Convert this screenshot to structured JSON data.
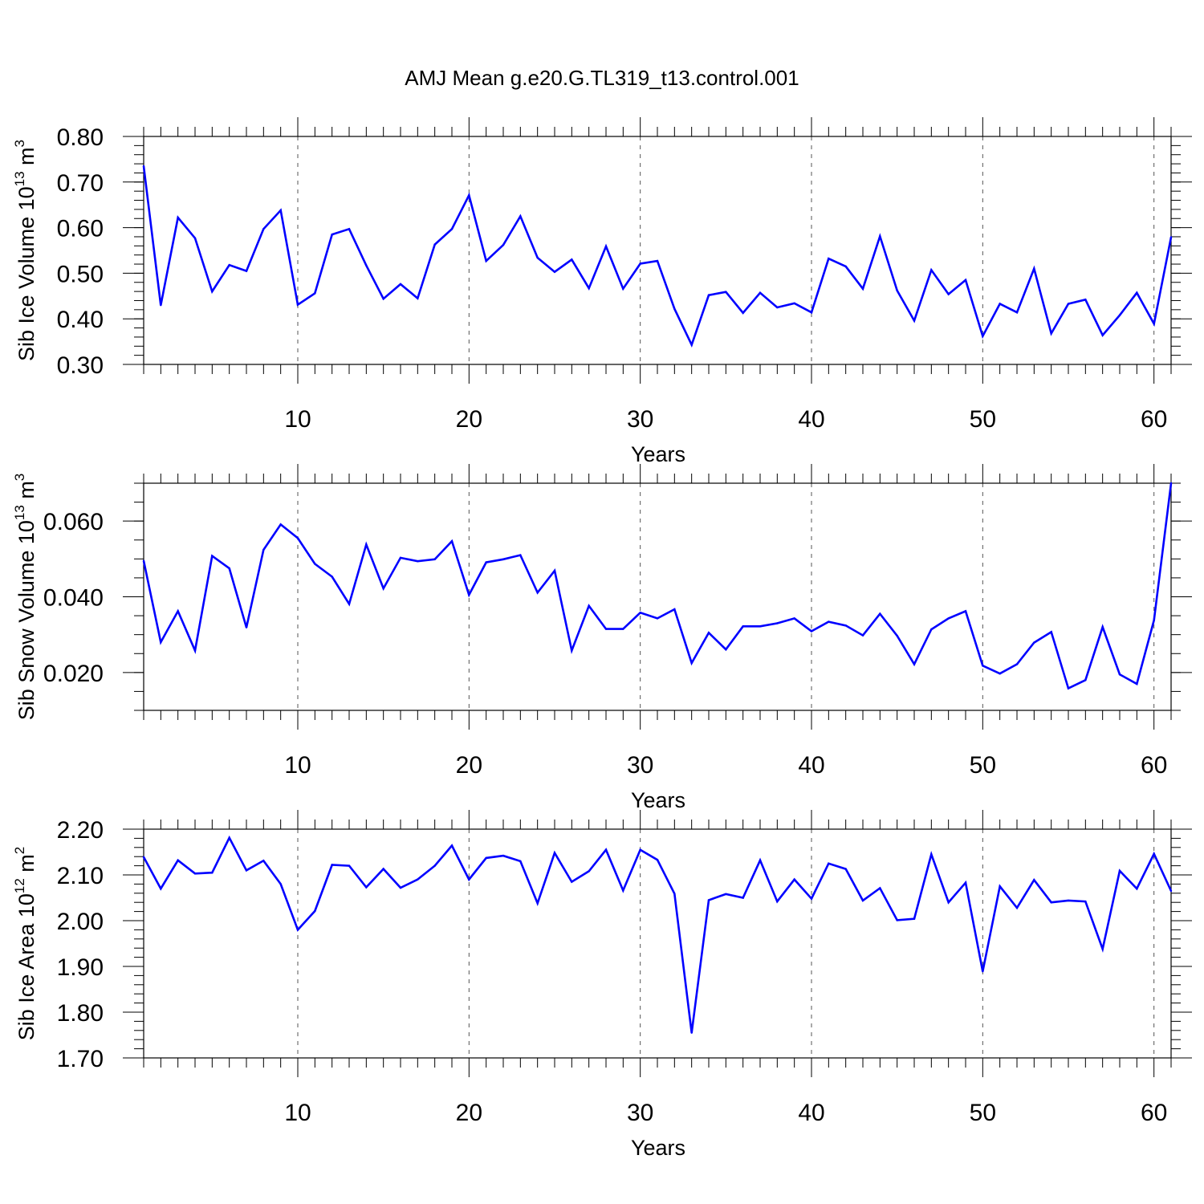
{
  "title": "AMJ Mean g.e20.G.TL319_t13.control.001",
  "chart_data": [
    {
      "type": "line",
      "xlabel": "Years",
      "ylabel": "Sib Ice Volume 10",
      "ylabel_exp": "13",
      "ylabel_unit": "m",
      "ylabel_unit_exp": "3",
      "xlim": [
        1,
        61
      ],
      "ylim": [
        0.3,
        0.8
      ],
      "xticks": [
        10,
        20,
        30,
        40,
        50,
        60
      ],
      "yticks": [
        0.3,
        0.4,
        0.5,
        0.6,
        0.7,
        0.8
      ],
      "ytick_labels": [
        "0.30",
        "0.40",
        "0.50",
        "0.60",
        "0.70",
        "0.80"
      ],
      "yminor": 0.02,
      "color": "#0000ff",
      "x": [
        1,
        2,
        3,
        4,
        5,
        6,
        7,
        8,
        9,
        10,
        11,
        12,
        13,
        14,
        15,
        16,
        17,
        18,
        19,
        20,
        21,
        22,
        23,
        24,
        25,
        26,
        27,
        28,
        29,
        30,
        31,
        32,
        33,
        34,
        35,
        36,
        37,
        38,
        39,
        40,
        41,
        42,
        43,
        44,
        45,
        46,
        47,
        48,
        49,
        50,
        51,
        52,
        53,
        54,
        55,
        56,
        57,
        58,
        59,
        60,
        61
      ],
      "y": [
        0.735,
        0.43,
        0.622,
        0.577,
        0.46,
        0.518,
        0.505,
        0.597,
        0.638,
        0.431,
        0.456,
        0.585,
        0.597,
        0.517,
        0.444,
        0.476,
        0.445,
        0.563,
        0.597,
        0.671,
        0.527,
        0.562,
        0.625,
        0.534,
        0.503,
        0.53,
        0.467,
        0.559,
        0.466,
        0.521,
        0.527,
        0.422,
        0.343,
        0.452,
        0.459,
        0.413,
        0.457,
        0.425,
        0.434,
        0.414,
        0.532,
        0.515,
        0.466,
        0.581,
        0.462,
        0.396,
        0.507,
        0.454,
        0.485,
        0.362,
        0.433,
        0.414,
        0.51,
        0.368,
        0.433,
        0.442,
        0.364,
        0.408,
        0.457,
        0.389,
        0.579
      ]
    },
    {
      "type": "line",
      "xlabel": "Years",
      "ylabel": "Sib Snow Volume 10",
      "ylabel_exp": "13",
      "ylabel_unit": "m",
      "ylabel_unit_exp": "3",
      "xlim": [
        1,
        61
      ],
      "ylim": [
        0.01,
        0.07
      ],
      "xticks": [
        10,
        20,
        30,
        40,
        50,
        60
      ],
      "yticks": [
        0.02,
        0.04,
        0.06
      ],
      "ytick_labels": [
        "0.020",
        "0.040",
        "0.060"
      ],
      "yminor": 0.005,
      "color": "#0000ff",
      "x": [
        1,
        2,
        3,
        4,
        5,
        6,
        7,
        8,
        9,
        10,
        11,
        12,
        13,
        14,
        15,
        16,
        17,
        18,
        19,
        20,
        21,
        22,
        23,
        24,
        25,
        26,
        27,
        28,
        29,
        30,
        31,
        32,
        33,
        34,
        35,
        36,
        37,
        38,
        39,
        40,
        41,
        42,
        43,
        44,
        45,
        46,
        47,
        48,
        49,
        50,
        51,
        52,
        53,
        54,
        55,
        56,
        57,
        58,
        59,
        60,
        61
      ],
      "y": [
        0.0495,
        0.028,
        0.0362,
        0.0258,
        0.0508,
        0.0475,
        0.0319,
        0.0524,
        0.0591,
        0.0555,
        0.0487,
        0.0453,
        0.0381,
        0.0538,
        0.0422,
        0.0503,
        0.0494,
        0.0499,
        0.0547,
        0.0405,
        0.0491,
        0.0499,
        0.051,
        0.0411,
        0.0469,
        0.0258,
        0.0376,
        0.0315,
        0.0315,
        0.0358,
        0.0343,
        0.0367,
        0.0225,
        0.0305,
        0.0261,
        0.0322,
        0.0322,
        0.033,
        0.0343,
        0.0309,
        0.0334,
        0.0324,
        0.0298,
        0.0355,
        0.0297,
        0.0222,
        0.0314,
        0.0343,
        0.0362,
        0.0218,
        0.0197,
        0.0222,
        0.0279,
        0.0307,
        0.0158,
        0.018,
        0.032,
        0.0195,
        0.017,
        0.0338,
        0.07
      ]
    },
    {
      "type": "line",
      "xlabel": "Years",
      "ylabel": "Sib Ice Area 10",
      "ylabel_exp": "12",
      "ylabel_unit": "m",
      "ylabel_unit_exp": "2",
      "xlim": [
        1,
        61
      ],
      "ylim": [
        1.7,
        2.2
      ],
      "xticks": [
        10,
        20,
        30,
        40,
        50,
        60
      ],
      "yticks": [
        1.7,
        1.8,
        1.9,
        2.0,
        2.1,
        2.2
      ],
      "ytick_labels": [
        "1.70",
        "1.80",
        "1.90",
        "2.00",
        "2.10",
        "2.20"
      ],
      "yminor": 0.02,
      "color": "#0000ff",
      "x": [
        1,
        2,
        3,
        4,
        5,
        6,
        7,
        8,
        9,
        10,
        11,
        12,
        13,
        14,
        15,
        16,
        17,
        18,
        19,
        20,
        21,
        22,
        23,
        24,
        25,
        26,
        27,
        28,
        29,
        30,
        31,
        32,
        33,
        34,
        35,
        36,
        37,
        38,
        39,
        40,
        41,
        42,
        43,
        44,
        45,
        46,
        47,
        48,
        49,
        50,
        51,
        52,
        53,
        54,
        55,
        56,
        57,
        58,
        59,
        60,
        61
      ],
      "y": [
        2.139,
        2.07,
        2.132,
        2.103,
        2.105,
        2.181,
        2.11,
        2.131,
        2.08,
        1.98,
        2.021,
        2.122,
        2.12,
        2.073,
        2.113,
        2.072,
        2.09,
        2.12,
        2.164,
        2.09,
        2.137,
        2.142,
        2.13,
        2.038,
        2.148,
        2.085,
        2.108,
        2.155,
        2.066,
        2.155,
        2.133,
        2.059,
        1.755,
        2.045,
        2.058,
        2.05,
        2.132,
        2.042,
        2.09,
        2.048,
        2.125,
        2.113,
        2.044,
        2.071,
        2.001,
        2.004,
        2.145,
        2.04,
        2.083,
        1.889,
        2.075,
        2.028,
        2.089,
        2.04,
        2.044,
        2.042,
        1.938,
        2.109,
        2.07,
        2.146,
        2.065
      ]
    }
  ]
}
